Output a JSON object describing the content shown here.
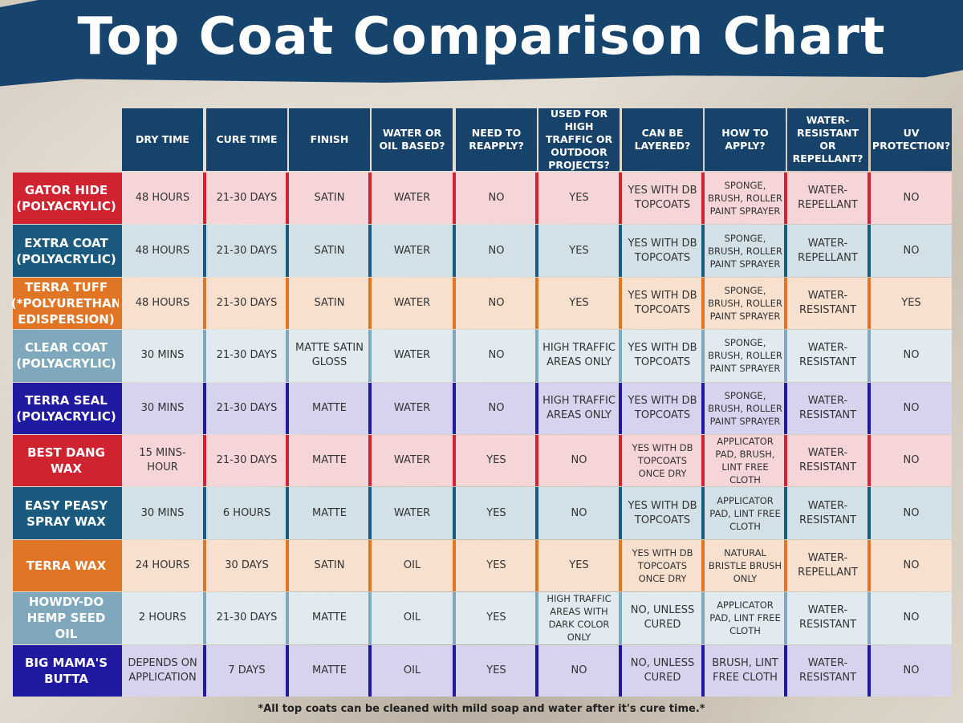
{
  "title": "Top Coat Comparison Chart",
  "footer": "*All top coats can be cleaned with mild soap and water after it's cure time.*",
  "headers": [
    "DRY TIME",
    "CURE TIME",
    "FINISH",
    "WATER OR OIL BASED?",
    "NEED TO REAPPLY?",
    "USED FOR HIGH TRAFFIC OR OUTDOOR PROJECTS?",
    "CAN BE LAYERED?",
    "HOW TO APPLY?",
    "WATER-RESISTANT OR REPELLANT?",
    "UV PROTECTION?"
  ],
  "rows": [
    {
      "label": "GATOR HIDE (POLYACRYLIC)",
      "label_color": "#cf2330",
      "row_color": "#f6d5d8",
      "sep_color": "#cf2330",
      "cells": [
        "48 HOURS",
        "21-30 DAYS",
        "SATIN",
        "WATER",
        "NO",
        "YES",
        "YES WITH DB TOPCOATS",
        "SPONGE, BRUSH, ROLLER PAINT SPRAYER",
        "WATER-REPELLANT",
        "NO"
      ]
    },
    {
      "label": "EXTRA COAT (POLYACRYLIC)",
      "label_color": "#1a5a7f",
      "row_color": "#d2e0e8",
      "sep_color": "#1a5a7f",
      "cells": [
        "48 HOURS",
        "21-30 DAYS",
        "SATIN",
        "WATER",
        "NO",
        "YES",
        "YES WITH DB TOPCOATS",
        "SPONGE, BRUSH, ROLLER PAINT SPRAYER",
        "WATER-REPELLANT",
        "NO"
      ]
    },
    {
      "label": "TERRA TUFF (*POLYURETHAN EDISPERSION)",
      "label_color": "#e07526",
      "row_color": "#f8e0cf",
      "sep_color": "#e07526",
      "cells": [
        "48 HOURS",
        "21-30 DAYS",
        "SATIN",
        "WATER",
        "NO",
        "YES",
        "YES WITH DB TOPCOATS",
        "SPONGE, BRUSH, ROLLER PAINT SPRAYER",
        "WATER-RESISTANT",
        "YES"
      ]
    },
    {
      "label": "CLEAR COAT (POLYACRYLIC)",
      "label_color": "#7fa8bd",
      "row_color": "#e0eaef",
      "sep_color": "#7fa8bd",
      "cells": [
        "30 MINS",
        "21-30 DAYS",
        "MATTE SATIN GLOSS",
        "WATER",
        "NO",
        "HIGH TRAFFIC AREAS ONLY",
        "YES WITH DB TOPCOATS",
        "SPONGE, BRUSH, ROLLER PAINT SPRAYER",
        "WATER-RESISTANT",
        "NO"
      ]
    },
    {
      "label": "TERRA SEAL (POLYACRYLIC)",
      "label_color": "#1f1aa0",
      "row_color": "#d5d3ee",
      "sep_color": "#1f1aa0",
      "cells": [
        "30 MINS",
        "21-30 DAYS",
        "MATTE",
        "WATER",
        "NO",
        "HIGH TRAFFIC AREAS ONLY",
        "YES WITH DB TOPCOATS",
        "SPONGE, BRUSH, ROLLER PAINT SPRAYER",
        "WATER-RESISTANT",
        "NO"
      ]
    },
    {
      "label": "BEST DANG WAX",
      "label_color": "#cf2330",
      "row_color": "#f6d5d8",
      "sep_color": "#cf2330",
      "cells": [
        "15 MINS- HOUR",
        "21-30 DAYS",
        "MATTE",
        "WATER",
        "YES",
        "NO",
        "YES WITH DB TOPCOATS ONCE DRY",
        "APPLICATOR PAD, BRUSH, LINT FREE CLOTH",
        "WATER-RESISTANT",
        "NO"
      ]
    },
    {
      "label": "EASY PEASY SPRAY WAX",
      "label_color": "#1a5a7f",
      "row_color": "#d2e0e8",
      "sep_color": "#1a5a7f",
      "cells": [
        "30 MINS",
        "6 HOURS",
        "MATTE",
        "WATER",
        "YES",
        "NO",
        "YES WITH DB TOPCOATS",
        "APPLICATOR PAD, LINT FREE CLOTH",
        "WATER-RESISTANT",
        "NO"
      ]
    },
    {
      "label": "TERRA WAX",
      "label_color": "#e07526",
      "row_color": "#f8e0cf",
      "sep_color": "#e07526",
      "cells": [
        "24 HOURS",
        "30 DAYS",
        "SATIN",
        "OIL",
        "YES",
        "YES",
        "YES WITH DB TOPCOATS ONCE DRY",
        "NATURAL BRISTLE BRUSH ONLY",
        "WATER-REPELLANT",
        "NO"
      ]
    },
    {
      "label": "HOWDY-DO HEMP SEED OIL",
      "label_color": "#7fa8bd",
      "row_color": "#e0eaef",
      "sep_color": "#7fa8bd",
      "cells": [
        "2 HOURS",
        "21-30 DAYS",
        "MATTE",
        "OIL",
        "YES",
        "HIGH TRAFFIC AREAS WITH DARK COLOR ONLY",
        "NO, UNLESS CURED",
        "APPLICATOR PAD, LINT FREE CLOTH",
        "WATER-RESISTANT",
        "NO"
      ]
    },
    {
      "label": "BIG MAMA'S BUTTA",
      "label_color": "#1f1aa0",
      "row_color": "#d5d3ee",
      "sep_color": "#1f1aa0",
      "cells": [
        "DEPENDS ON APPLICATION",
        "7 DAYS",
        "MATTE",
        "OIL",
        "YES",
        "NO",
        "NO, UNLESS CURED",
        "BRUSH, LINT FREE CLOTH",
        "WATER-RESISTANT",
        "NO"
      ]
    }
  ]
}
